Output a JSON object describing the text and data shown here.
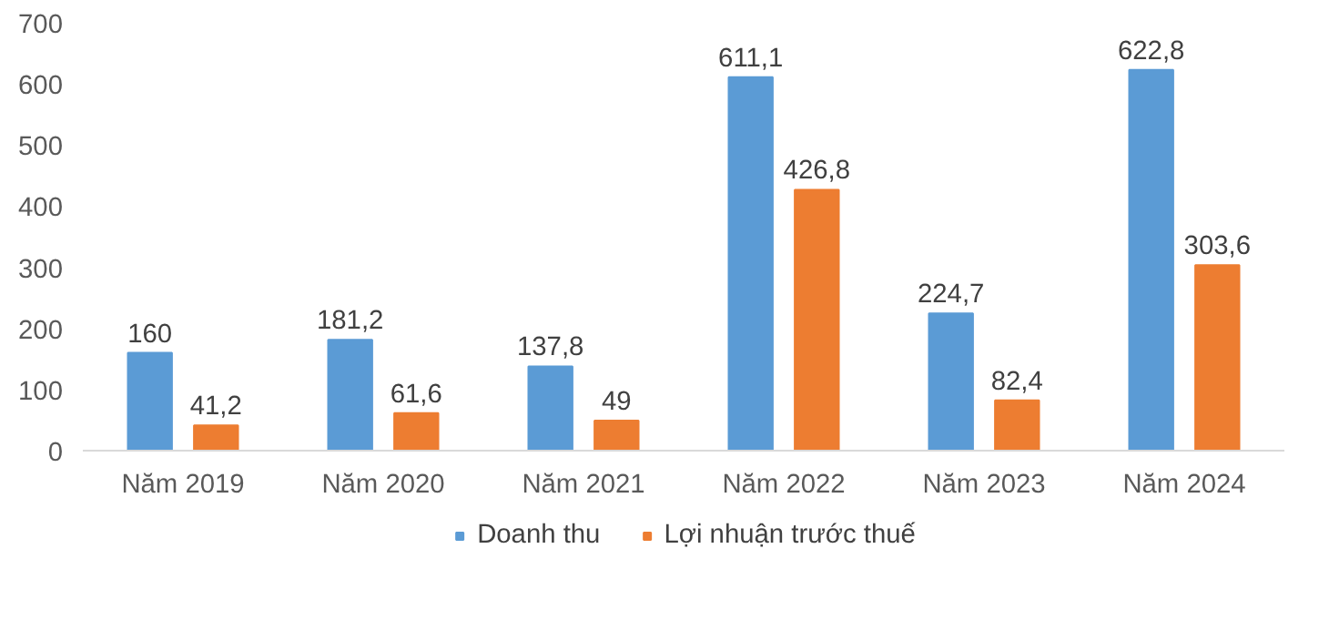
{
  "chart_data": {
    "type": "bar",
    "categories": [
      "Năm 2019",
      "Năm 2020",
      "Năm 2021",
      "Năm 2022",
      "Năm 2023",
      "Năm 2024"
    ],
    "series": [
      {
        "name": "Doanh thu",
        "color": "#5b9bd5",
        "values": [
          160,
          181.2,
          137.8,
          611.1,
          224.7,
          622.8
        ],
        "value_labels": [
          "160",
          "181,2",
          "137,8",
          "611,1",
          "224,7",
          "622,8"
        ]
      },
      {
        "name": "Lợi nhuận trước thuế",
        "color": "#ed7d31",
        "values": [
          41.2,
          61.6,
          49,
          426.8,
          82.4,
          303.6
        ],
        "value_labels": [
          "41,2",
          "61,6",
          "49",
          "426,8",
          "82,4",
          "303,6"
        ]
      }
    ],
    "ylim": [
      0,
      700
    ],
    "yticks": [
      0,
      100,
      200,
      300,
      400,
      500,
      600,
      700
    ],
    "grid": false,
    "legend": "bottom"
  }
}
